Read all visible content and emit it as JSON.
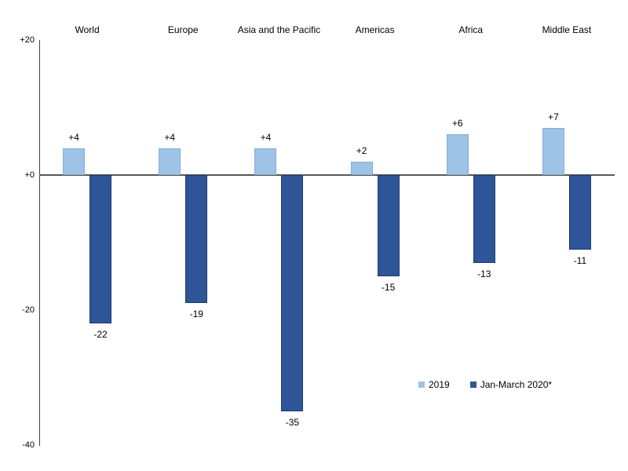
{
  "chart_data": {
    "type": "bar",
    "title": "",
    "categories": [
      "World",
      "Europe",
      "Asia and the Pacific",
      "Americas",
      "Africa",
      "Middle East"
    ],
    "series": [
      {
        "name": "2019",
        "color": "#9DC3E6",
        "border_color": "#85AED9",
        "values": [
          4,
          4,
          4,
          2,
          6,
          7
        ],
        "labels": [
          "+4",
          "+4",
          "+4",
          "+2",
          "+6",
          "+7"
        ]
      },
      {
        "name": "Jan-March 2020*",
        "color": "#2E5597",
        "border_color": "#1F3C6E",
        "values": [
          -22,
          -19,
          -35,
          -15,
          -13,
          -11
        ],
        "labels": [
          "-22",
          "-19",
          "-35",
          "-15",
          "-13",
          "-11"
        ]
      }
    ],
    "xlabel": "",
    "ylabel": "",
    "ylim": [
      -40,
      20
    ],
    "grid": false,
    "y_axis": {
      "ticks": [
        {
          "value": 20,
          "label": "+20"
        },
        {
          "value": 0,
          "label": "+0"
        },
        {
          "value": -20,
          "label": "-20"
        },
        {
          "value": -40,
          "label": "-40"
        }
      ]
    },
    "legend": {
      "position": "inside-bottom-center",
      "items": [
        {
          "label": "2019",
          "color": "#9DC3E6"
        },
        {
          "label": "Jan-March 2020*",
          "color": "#2E5597"
        }
      ]
    },
    "colors": {
      "axis_line": "#404040",
      "zero_line": "#595959",
      "text": "#000000",
      "background": "#ffffff"
    }
  }
}
